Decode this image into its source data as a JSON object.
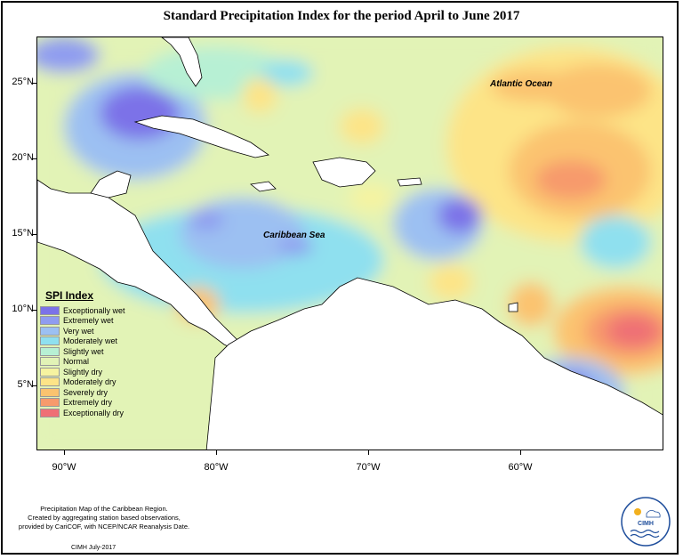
{
  "title": "Standard Precipitation Index for the period April to June 2017",
  "map_labels": {
    "atlantic": "Atlantic Ocean",
    "caribbean": "Caribbean Sea"
  },
  "lat_labels": [
    "25°N",
    "20°N",
    "15°N",
    "10°N",
    "5°N"
  ],
  "lon_labels": [
    "90°W",
    "80°W",
    "70°W",
    "60°W"
  ],
  "legend": {
    "title": "SPI Index",
    "items": [
      {
        "label": "Exceptionally wet",
        "color": "#7b72e8"
      },
      {
        "label": "Extremely wet",
        "color": "#8f9cf0"
      },
      {
        "label": "Very wet",
        "color": "#9cc0f2"
      },
      {
        "label": "Moderately wet",
        "color": "#8fe0ef"
      },
      {
        "label": "Slightly wet",
        "color": "#b7f0d4"
      },
      {
        "label": "Normal",
        "color": "#e2f3b6"
      },
      {
        "label": "Slightly dry",
        "color": "#f6f3a0"
      },
      {
        "label": "Moderately dry",
        "color": "#fde487"
      },
      {
        "label": "Severely dry",
        "color": "#fbc36f"
      },
      {
        "label": "Extremely dry",
        "color": "#f79a6c"
      },
      {
        "label": "Exceptionally dry",
        "color": "#ef6f75"
      }
    ]
  },
  "notes": [
    "Precipitation Map of the Caribbean Region.",
    "Created by aggregating station based observations,",
    "provided by CariCOF, with NCEP/NCAR Reanalysis Date."
  ],
  "credit": "CIMH July-2017",
  "logo_text": "CIMH"
}
